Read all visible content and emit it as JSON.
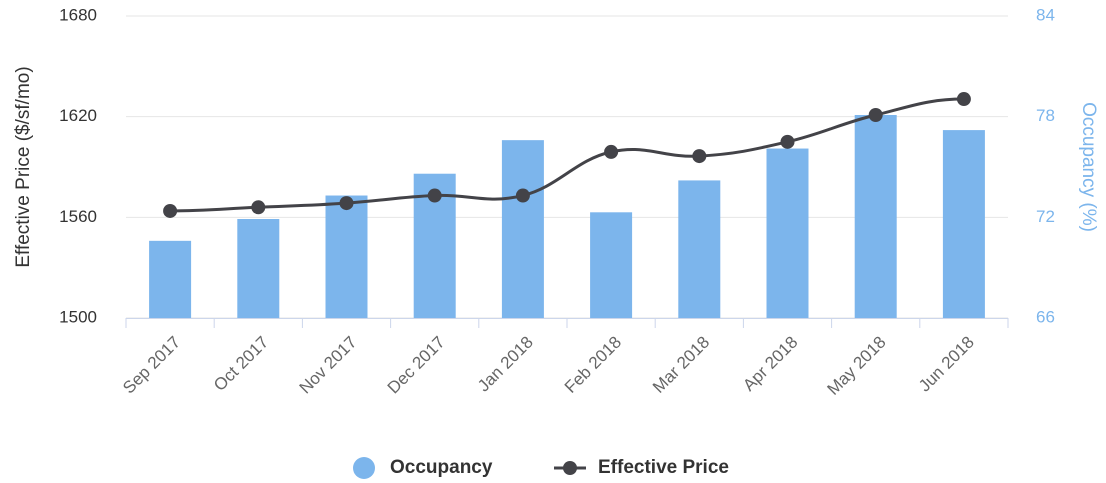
{
  "chart_data": {
    "type": "bar_line",
    "categories": [
      "Sep 2017",
      "Oct 2017",
      "Nov 2017",
      "Dec 2017",
      "Jan 2018",
      "Feb 2018",
      "Mar 2018",
      "Apr 2018",
      "May 2018",
      "Jun 2018"
    ],
    "ylabel": "Effective Price ($/sf/mo)",
    "y2label": "Occupancy (%)",
    "ylim": [
      1500,
      1680
    ],
    "yticks": [
      1500,
      1560,
      1620,
      1680
    ],
    "y2lim": [
      66,
      84
    ],
    "y2ticks": [
      66,
      72,
      78,
      84
    ],
    "grid": true,
    "series": [
      {
        "name": "Occupancy",
        "type": "bar",
        "axis": "y2",
        "color": "#7cb5ec",
        "values": [
          70.6,
          71.9,
          73.3,
          74.6,
          76.6,
          72.3,
          74.2,
          76.1,
          78.1,
          77.2
        ]
      },
      {
        "name": "Effective Price",
        "type": "line",
        "color": "#434348",
        "values": [
          1563.8,
          1566,
          1568.5,
          1573,
          1573,
          1599,
          1596.5,
          1605,
          1621,
          1630.5
        ]
      }
    ]
  }
}
